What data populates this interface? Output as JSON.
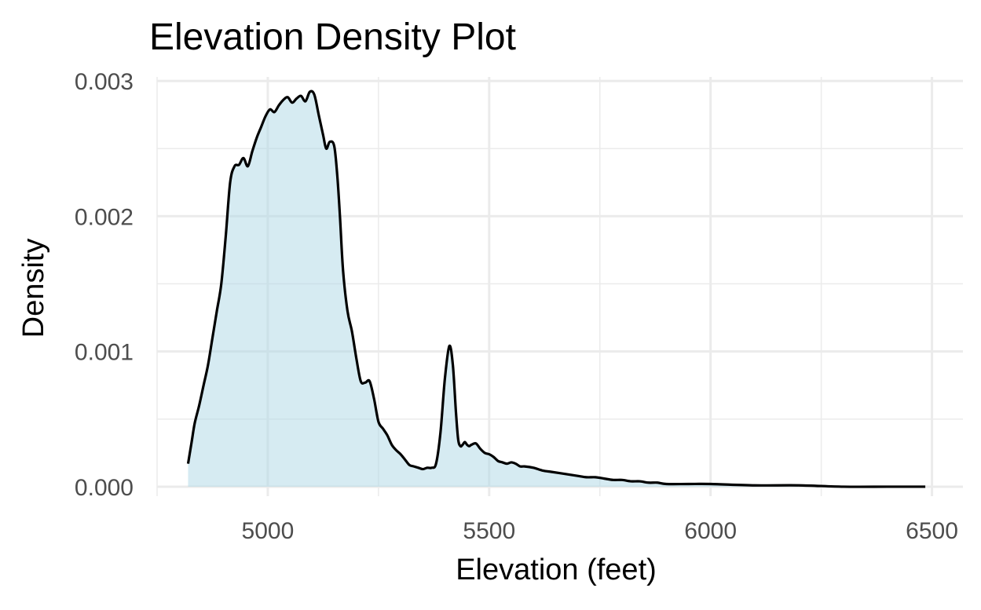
{
  "chart_data": {
    "type": "area",
    "title": "Elevation Density Plot",
    "xlabel": "Elevation (feet)",
    "ylabel": "Density",
    "xlim": [
      4750,
      6570
    ],
    "ylim": [
      -7e-05,
      0.00303
    ],
    "x_ticks": [
      5000,
      5500,
      6000,
      6500
    ],
    "x_tick_labels": [
      "5000",
      "5500",
      "6000",
      "6500"
    ],
    "y_ticks": [
      0.0,
      0.001,
      0.002,
      0.003
    ],
    "y_tick_labels": [
      "0.000",
      "0.001",
      "0.002",
      "0.003"
    ],
    "grid": true,
    "legend": "none",
    "fill_color": "#add8e6",
    "line_color": "#000000",
    "series": [
      {
        "x": [
          4820,
          4828,
          4835,
          4845,
          4855,
          4865,
          4875,
          4885,
          4895,
          4905,
          4915,
          4925,
          4935,
          4945,
          4955,
          4965,
          4975,
          4985,
          4995,
          5005,
          5015,
          5025,
          5035,
          5045,
          5055,
          5065,
          5075,
          5085,
          5095,
          5105,
          5115,
          5125,
          5132,
          5140,
          5150,
          5157,
          5163,
          5170,
          5180,
          5190,
          5200,
          5210,
          5220,
          5230,
          5240,
          5250,
          5260,
          5270,
          5280,
          5290,
          5300,
          5310,
          5320,
          5330,
          5340,
          5350,
          5360,
          5370,
          5380,
          5390,
          5400,
          5410,
          5418,
          5425,
          5430,
          5435,
          5440,
          5445,
          5450,
          5455,
          5460,
          5470,
          5480,
          5490,
          5500,
          5510,
          5520,
          5530,
          5540,
          5550,
          5560,
          5570,
          5580,
          5600,
          5620,
          5640,
          5660,
          5680,
          5700,
          5720,
          5740,
          5760,
          5780,
          5800,
          5820,
          5840,
          5860,
          5880,
          5900,
          5950,
          6000,
          6100,
          6200,
          6300,
          6400,
          6485
        ],
        "y": [
          0.00017,
          0.00033,
          0.00047,
          0.0006,
          0.00075,
          0.0009,
          0.0011,
          0.0013,
          0.0015,
          0.00185,
          0.00225,
          0.00237,
          0.00238,
          0.00243,
          0.00237,
          0.00248,
          0.00258,
          0.00266,
          0.00274,
          0.00279,
          0.00277,
          0.00282,
          0.00286,
          0.00288,
          0.00284,
          0.00287,
          0.00289,
          0.00285,
          0.00292,
          0.0029,
          0.00275,
          0.0026,
          0.0025,
          0.00255,
          0.00252,
          0.0023,
          0.002,
          0.0016,
          0.0013,
          0.00115,
          0.00095,
          0.00078,
          0.00077,
          0.00078,
          0.00065,
          0.00048,
          0.00043,
          0.00038,
          0.00031,
          0.00027,
          0.00024,
          0.0002,
          0.00016,
          0.00015,
          0.00014,
          0.00013,
          0.00014,
          0.00014,
          0.00017,
          0.0004,
          0.0008,
          0.00104,
          0.0009,
          0.00055,
          0.00035,
          0.0003,
          0.00031,
          0.00033,
          0.00031,
          0.0003,
          0.00031,
          0.00032,
          0.00028,
          0.00025,
          0.00024,
          0.00022,
          0.00019,
          0.00018,
          0.00017,
          0.00018,
          0.00017,
          0.00015,
          0.00015,
          0.00014,
          0.00012,
          0.00011,
          0.0001,
          9e-05,
          8e-05,
          7e-05,
          7e-05,
          6e-05,
          5e-05,
          5e-05,
          4e-05,
          4e-05,
          3e-05,
          3e-05,
          2e-05,
          2e-05,
          2e-05,
          1e-05,
          1e-05,
          0.0,
          0.0,
          0.0
        ]
      }
    ]
  }
}
